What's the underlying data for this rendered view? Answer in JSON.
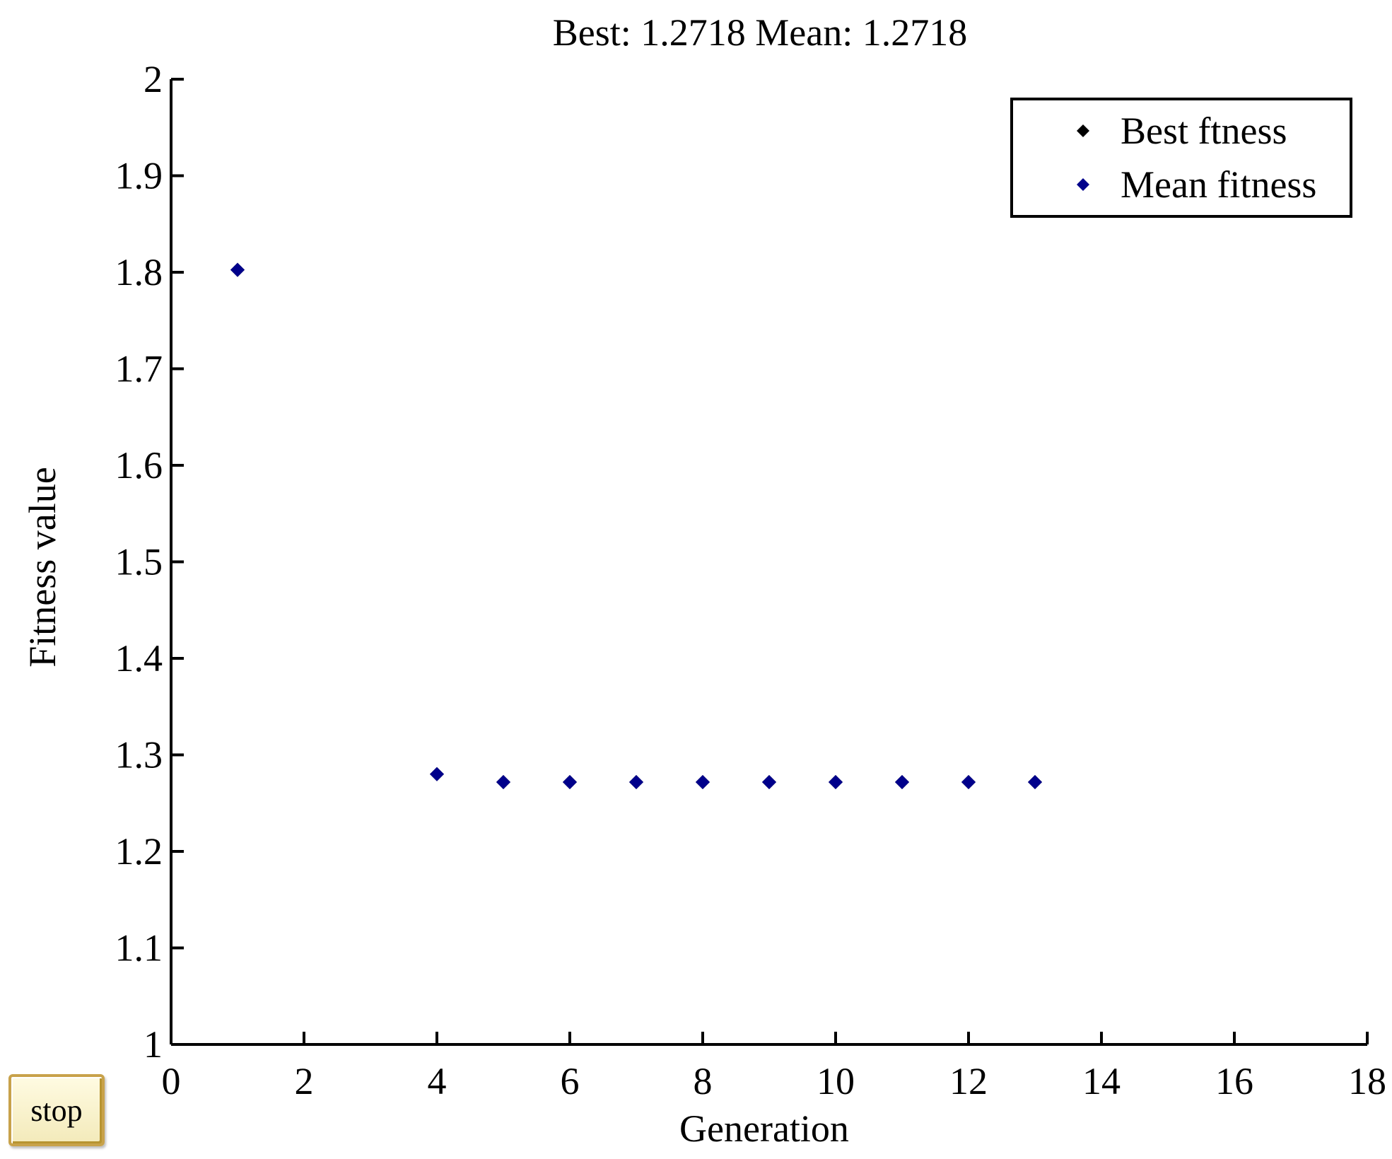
{
  "stop_button": {
    "label": "stop"
  },
  "colors": {
    "best_marker": "#000000",
    "mean_marker": "#00008b",
    "axis": "#000000"
  },
  "chart_data": {
    "type": "scatter",
    "title": "Best: 1.2718 Mean: 1.2718",
    "xlabel": "Generation",
    "ylabel": "Fitness value",
    "xlim": [
      0,
      18
    ],
    "ylim": [
      1,
      2
    ],
    "xticks": [
      0,
      2,
      4,
      6,
      8,
      10,
      12,
      14,
      16,
      18
    ],
    "yticks": [
      1,
      1.1,
      1.2,
      1.3,
      1.4,
      1.5,
      1.6,
      1.7,
      1.8,
      1.9,
      2
    ],
    "grid": false,
    "legend_position": "top-right",
    "series": [
      {
        "name": "Best ftness",
        "marker": "diamond",
        "color": "#000000",
        "x": [
          1,
          4,
          5,
          6,
          7,
          8,
          9,
          10,
          11,
          12,
          13
        ],
        "y": [
          1.8025,
          1.28,
          1.2718,
          1.2718,
          1.2718,
          1.2718,
          1.2718,
          1.2718,
          1.2718,
          1.2718,
          1.2718
        ]
      },
      {
        "name": "Mean fitness",
        "marker": "diamond",
        "color": "#00008b",
        "x": [
          1,
          4,
          5,
          6,
          7,
          8,
          9,
          10,
          11,
          12,
          13
        ],
        "y": [
          1.8025,
          1.28,
          1.2718,
          1.2718,
          1.2718,
          1.2718,
          1.2718,
          1.2718,
          1.2718,
          1.2718,
          1.2718
        ]
      }
    ]
  }
}
